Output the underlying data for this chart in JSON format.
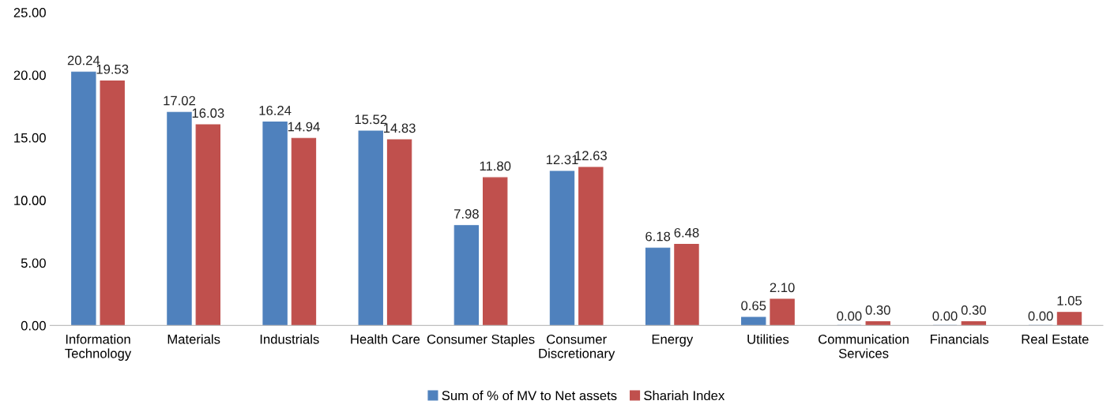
{
  "chart_data": {
    "type": "bar",
    "categories": [
      "Information\nTechnology",
      "Materials",
      "Industrials",
      "Health Care",
      "Consumer Staples",
      "Consumer\nDiscretionary",
      "Energy",
      "Utilities",
      "Communication\nServices",
      "Financials",
      "Real Estate"
    ],
    "series": [
      {
        "name": "Sum of % of MV to Net assets",
        "color": "#4f81bd",
        "values": [
          20.24,
          17.02,
          16.24,
          15.52,
          7.98,
          12.31,
          6.18,
          0.65,
          0.0,
          0.0,
          0.0
        ],
        "value_labels": [
          "20.24",
          "17.02",
          "16.24",
          "15.52",
          "7.98",
          "12.31",
          "6.18",
          "0.65",
          "0.00",
          "0.00",
          "0.00"
        ]
      },
      {
        "name": "Shariah Index",
        "color": "#c0504d",
        "values": [
          19.53,
          16.03,
          14.94,
          14.83,
          11.8,
          12.63,
          6.48,
          2.1,
          0.3,
          0.3,
          1.05
        ],
        "value_labels": [
          "19.53",
          "16.03",
          "14.94",
          "14.83",
          "11.80",
          "12.63",
          "6.48",
          "2.10",
          "0.30",
          "0.30",
          "1.05"
        ]
      }
    ],
    "ylim": [
      0,
      25
    ],
    "yticks": [
      {
        "value": 0,
        "label": "0.00"
      },
      {
        "value": 5,
        "label": "5.00"
      },
      {
        "value": 10,
        "label": "10.00"
      },
      {
        "value": 15,
        "label": "15.00"
      },
      {
        "value": 20,
        "label": "20.00"
      },
      {
        "value": 25,
        "label": "25.00"
      }
    ],
    "grid": false,
    "legend": "bottom"
  }
}
